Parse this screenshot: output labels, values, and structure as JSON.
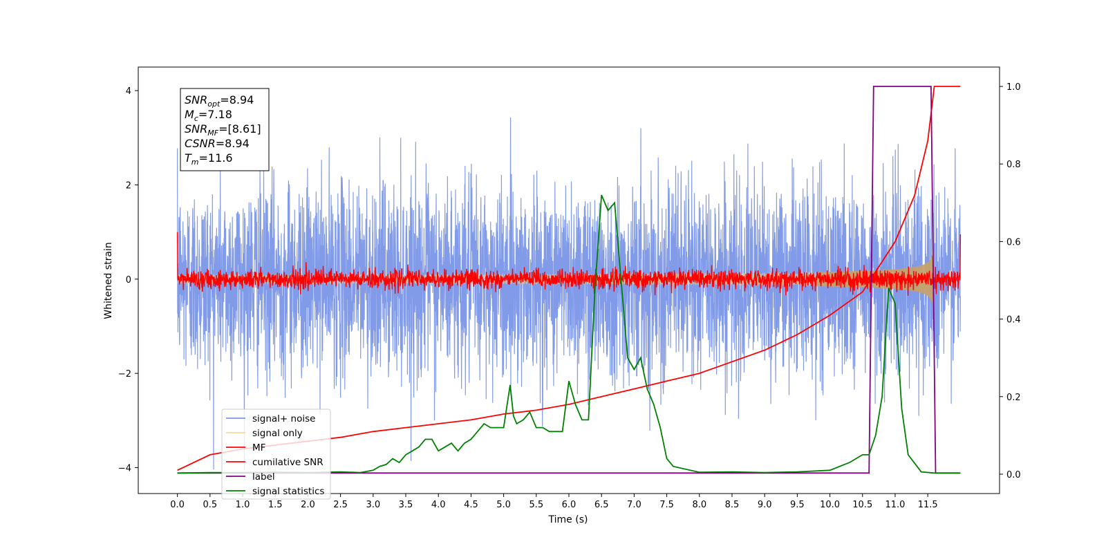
{
  "chart_data": {
    "type": "line",
    "xlabel": "Time (s)",
    "ylabel_left": "Whitened strain",
    "ylabel_right": "",
    "xlim": [
      -0.6,
      12.6
    ],
    "ylim_left": [
      -4.55,
      4.5
    ],
    "ylim_right": [
      -0.05,
      1.05
    ],
    "x_ticks": [
      "0.0",
      "0.5",
      "1.0",
      "1.5",
      "2.0",
      "2.5",
      "3.0",
      "3.5",
      "4.0",
      "4.5",
      "5.0",
      "5.5",
      "6.0",
      "6.5",
      "7.0",
      "7.5",
      "8.0",
      "8.5",
      "9.0",
      "9.5",
      "10.0",
      "10.5",
      "11.0",
      "11.5"
    ],
    "y_ticks_left": [
      "4",
      "2",
      "0",
      "−2",
      "−4"
    ],
    "y_ticks_right": [
      "1.0",
      "0.8",
      "0.6",
      "0.4",
      "0.2",
      "0.0"
    ],
    "grid": false,
    "legend_position": "lower-left",
    "info_box": {
      "lines": [
        {
          "main": "SNR",
          "sub": "opt",
          "value": "=8.94"
        },
        {
          "main": "M",
          "sub": "c",
          "value": "=7.18"
        },
        {
          "main": "SNR",
          "sub": "MF",
          "value": "=[8.61]"
        },
        {
          "main": "CSNR",
          "sub": "",
          "value": "=8.94"
        },
        {
          "main": "T",
          "sub": "m",
          "value": "=11.6"
        }
      ]
    },
    "series": [
      {
        "name": "signal+ noise",
        "color": "#7b96e8",
        "axis": "left",
        "kind": "noise",
        "range": [
          0,
          12.0
        ],
        "sigma": 1.0,
        "peak": 4.05
      },
      {
        "name": "signal only",
        "color": "#f5cd72",
        "axis": "left",
        "kind": "chirp",
        "range": [
          0,
          11.6
        ],
        "amplitude_end": 0.65
      },
      {
        "name": "MF",
        "color": "#ff0000",
        "axis": "left",
        "kind": "noise",
        "range": [
          0,
          12.0
        ],
        "sigma": 0.1,
        "peak": 0.45
      },
      {
        "name": "cumilative SNR",
        "color": "#ff0000",
        "axis": "right",
        "kind": "curve",
        "x": [
          0,
          0.5,
          1.0,
          1.5,
          2.0,
          2.5,
          3.0,
          3.5,
          4.0,
          4.5,
          5.0,
          5.5,
          6.0,
          6.5,
          7.0,
          7.5,
          8.0,
          8.5,
          9.0,
          9.5,
          10.0,
          10.5,
          11.0,
          11.3,
          11.5,
          11.6,
          12.0
        ],
        "y": [
          0.01,
          0.05,
          0.065,
          0.075,
          0.085,
          0.095,
          0.11,
          0.12,
          0.13,
          0.14,
          0.155,
          0.165,
          0.18,
          0.2,
          0.22,
          0.24,
          0.26,
          0.29,
          0.32,
          0.36,
          0.41,
          0.47,
          0.6,
          0.72,
          0.86,
          1.0,
          1.0
        ]
      },
      {
        "name": "label",
        "color": "#800080",
        "axis": "right",
        "kind": "curve",
        "x": [
          0,
          10.6,
          10.67,
          11.55,
          11.62,
          12.0
        ],
        "y": [
          0.003,
          0.003,
          1.0,
          1.0,
          0.003,
          0.003
        ]
      },
      {
        "name": "signal statistics",
        "color": "#008000",
        "axis": "right",
        "kind": "curve",
        "x": [
          0,
          0.5,
          1,
          1.5,
          2,
          2.5,
          2.8,
          3.0,
          3.1,
          3.2,
          3.3,
          3.4,
          3.5,
          3.6,
          3.7,
          3.8,
          3.9,
          4.0,
          4.1,
          4.2,
          4.3,
          4.4,
          4.5,
          4.6,
          4.7,
          4.8,
          4.9,
          5.0,
          5.1,
          5.15,
          5.2,
          5.3,
          5.4,
          5.5,
          5.6,
          5.7,
          5.8,
          5.9,
          6.0,
          6.1,
          6.2,
          6.3,
          6.4,
          6.5,
          6.6,
          6.7,
          6.8,
          6.9,
          7.0,
          7.1,
          7.2,
          7.3,
          7.4,
          7.5,
          7.6,
          8.0,
          8.5,
          9.0,
          9.5,
          10.0,
          10.3,
          10.5,
          10.6,
          10.7,
          10.8,
          10.9,
          11.0,
          11.1,
          11.2,
          11.4,
          11.6,
          12.0
        ],
        "y": [
          0.003,
          0.004,
          0.004,
          0.005,
          0.004,
          0.006,
          0.004,
          0.01,
          0.02,
          0.025,
          0.04,
          0.03,
          0.05,
          0.06,
          0.07,
          0.09,
          0.09,
          0.06,
          0.07,
          0.08,
          0.06,
          0.08,
          0.09,
          0.11,
          0.13,
          0.12,
          0.12,
          0.12,
          0.23,
          0.15,
          0.13,
          0.14,
          0.16,
          0.12,
          0.12,
          0.11,
          0.11,
          0.11,
          0.24,
          0.18,
          0.14,
          0.14,
          0.48,
          0.72,
          0.68,
          0.7,
          0.5,
          0.3,
          0.27,
          0.3,
          0.22,
          0.18,
          0.12,
          0.04,
          0.02,
          0.005,
          0.006,
          0.004,
          0.006,
          0.01,
          0.03,
          0.05,
          0.05,
          0.1,
          0.2,
          0.48,
          0.44,
          0.17,
          0.05,
          0.006,
          0.003,
          0.003
        ]
      }
    ]
  }
}
